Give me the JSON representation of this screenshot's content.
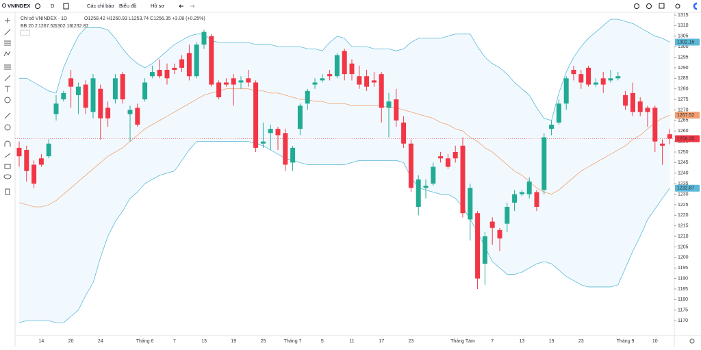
{
  "toolbar": {
    "symbol": "VNINDEX",
    "interval": "D",
    "indicators": "Các chỉ báo",
    "chart_type": "Biểu đồ",
    "profile": "Hồ sơ"
  },
  "chart_data": {
    "type": "candlestick",
    "title": "Chỉ số VNINDEX · 1D",
    "ohlc_text": "O1258.42 H1260.93 L1253.74 C1256.35 +3.08 (+0.25%)",
    "indicator_label": "BB 20 2",
    "indicator_values": [
      "1267.52",
      "1302.16",
      "1232.87"
    ],
    "categories": [
      null,
      null,
      null,
      "14",
      null,
      null,
      null,
      "20",
      null,
      null,
      null,
      "24",
      null,
      null,
      null,
      null,
      null,
      "Tháng 6",
      null,
      null,
      null,
      "7",
      null,
      null,
      null,
      "13",
      null,
      null,
      null,
      "19",
      null,
      null,
      null,
      "25",
      null,
      null,
      null,
      "Tháng 7",
      null,
      null,
      null,
      "5",
      null,
      null,
      null,
      "11",
      null,
      null,
      null,
      "17",
      null,
      null,
      null,
      "23",
      null,
      null,
      null,
      null,
      null,
      null,
      "Tháng Tám",
      null,
      null,
      null,
      "7",
      null,
      null,
      null,
      "13",
      null,
      null,
      null,
      "19",
      null,
      null,
      null,
      "23",
      null,
      null,
      null,
      null,
      null,
      "Tháng 9",
      null,
      null,
      null,
      "10",
      null,
      null
    ],
    "open": [
      1252,
      1251,
      1244,
      1247,
      1248,
      1268,
      1275,
      1285,
      1277,
      1282,
      1269,
      1280,
      1271,
      1275,
      1287,
      1268,
      1271,
      1275,
      1286,
      1289,
      1289,
      1290,
      1294,
      1297,
      1286,
      1301,
      1305,
      1283,
      1283,
      1285,
      1283,
      1285,
      1283,
      1254,
      1259,
      1261,
      1259,
      1245,
      1261,
      1273,
      1282,
      1284,
      1287,
      1286,
      1298,
      1292,
      1286,
      1286,
      1284,
      1287,
      1271,
      1275,
      1264,
      1254,
      1224,
      1233,
      1235,
      1248,
      1247,
      1250,
      1253,
      1218,
      1221,
      1197,
      1217,
      1213,
      1216,
      1226,
      1230,
      1230,
      1231,
      1232,
      1261,
      1264,
      1273,
      1289,
      1287,
      1290,
      1282,
      1285,
      1284,
      1285,
      1277,
      1278,
      1274,
      1271,
      1271,
      1254,
      1258.42
    ],
    "high": [
      1255,
      1253,
      1246,
      1249,
      1256,
      1277,
      1279,
      1289,
      1283,
      1284,
      1287,
      1282,
      1274,
      1287,
      1288,
      1272,
      1273,
      1285,
      1291,
      1294,
      1292,
      1292,
      1296,
      1301,
      1302,
      1308,
      1306,
      1284,
      1285,
      1287,
      1286,
      1289,
      1284,
      1264,
      1263,
      1262,
      1261,
      1253,
      1273,
      1280,
      1285,
      1287,
      1289,
      1297,
      1299,
      1294,
      1291,
      1289,
      1288,
      1288,
      1278,
      1280,
      1267,
      1256,
      1239,
      1237,
      1245,
      1250,
      1249,
      1253,
      1257,
      1235,
      1222,
      1212,
      1219,
      1214,
      1226,
      1232,
      1232,
      1238,
      1232,
      1259,
      1265,
      1275,
      1286,
      1291,
      1289,
      1291,
      1285,
      1288,
      1289,
      1288,
      1279,
      1283,
      1276,
      1272,
      1272,
      1256,
      1260.93
    ],
    "low": [
      1243,
      1236,
      1233,
      1243,
      1247,
      1265,
      1274,
      1271,
      1268,
      1268,
      1266,
      1256,
      1262,
      1273,
      1273,
      1255,
      1262,
      1274,
      1285,
      1285,
      1282,
      1287,
      1288,
      1284,
      1285,
      1299,
      1281,
      1275,
      1281,
      1272,
      1280,
      1281,
      1250,
      1252,
      1251,
      1251,
      1241,
      1241,
      1258,
      1270,
      1280,
      1283,
      1284,
      1285,
      1284,
      1284,
      1280,
      1279,
      1281,
      1264,
      1257,
      1262,
      1252,
      1231,
      1220,
      1228,
      1234,
      1245,
      1242,
      1245,
      1219,
      1208,
      1185,
      1187,
      1206,
      1203,
      1212,
      1222,
      1229,
      1228,
      1222,
      1230,
      1258,
      1263,
      1270,
      1284,
      1280,
      1281,
      1281,
      1278,
      1283,
      1284,
      1270,
      1267,
      1267,
      1262,
      1250,
      1244,
      1253.74
    ],
    "close": [
      1248,
      1241,
      1235,
      1244,
      1254,
      1273,
      1278,
      1281,
      1281,
      1271,
      1285,
      1266,
      1266,
      1285,
      1275,
      1270,
      1263,
      1283,
      1288,
      1286,
      1285,
      1289,
      1290,
      1286,
      1301,
      1307,
      1282,
      1276,
      1282,
      1282,
      1284,
      1283,
      1252,
      1255,
      1261,
      1258,
      1244,
      1252,
      1272,
      1279,
      1283,
      1285,
      1286,
      1296,
      1287,
      1287,
      1282,
      1281,
      1283,
      1271,
      1274,
      1265,
      1254,
      1233,
      1237,
      1234,
      1243,
      1247,
      1243,
      1247,
      1221,
      1233,
      1190,
      1210,
      1214,
      1209,
      1224,
      1230,
      1231,
      1236,
      1224,
      1257,
      1263,
      1273,
      1285,
      1287,
      1283,
      1282,
      1283,
      1282,
      1285,
      1286,
      1272,
      1269,
      1269,
      1269,
      1255,
      1253,
      1256.35
    ],
    "up_color": "#22ab94",
    "down_color": "#f23645",
    "band_fill": "rgba(33,150,243,0.06)",
    "overlays": [
      {
        "color": "#f0a070",
        "values": [
          1226,
          1225,
          1224,
          1224,
          1225,
          1227,
          1230,
          1233,
          1236,
          1239,
          1242,
          1245,
          1248,
          1250,
          1252,
          1255,
          1258,
          1261,
          1263,
          1265,
          1267,
          1269,
          1271,
          1273,
          1275,
          1277,
          1278,
          1279,
          1280,
          1280,
          1280,
          1280,
          1279,
          1279,
          1278,
          1278,
          1277,
          1276,
          1275,
          1275,
          1274,
          1274,
          1273,
          1273,
          1273,
          1272,
          1272,
          1272,
          1272,
          1272,
          1271,
          1271,
          1270,
          1269,
          1268,
          1267,
          1266,
          1264,
          1263,
          1261,
          1260,
          1257,
          1255,
          1252,
          1250,
          1247,
          1244,
          1241,
          1239,
          1236,
          1233,
          1231,
          1230,
          1232,
          1235,
          1238,
          1241,
          1243,
          1245,
          1247,
          1249,
          1251,
          1253,
          1256,
          1258,
          1261,
          1264,
          1266,
          1267.52
        ]
      },
      {
        "color": "#5bb8d8",
        "values": [
          1285,
          1285,
          1283,
          1281,
          1279,
          1278,
          1290,
          1298,
          1305,
          1309,
          1309,
          1309,
          1308,
          1304,
          1299,
          1295,
          1292,
          1290,
          1292,
          1295,
          1298,
          1301,
          1303,
          1305,
          1306,
          1306,
          1303,
          1302,
          1302,
          1302,
          1302,
          1302,
          1301,
          1301,
          1301,
          1300,
          1300,
          1300,
          1300,
          1299,
          1299,
          1298,
          1302,
          1305,
          1304,
          1300,
          1300,
          1300,
          1299,
          1299,
          1299,
          1298,
          1299,
          1302,
          1304,
          1304,
          1304,
          1304,
          1305,
          1306,
          1306,
          1306,
          1300,
          1295,
          1292,
          1290,
          1287,
          1283,
          1280,
          1277,
          1271,
          1266,
          1265,
          1278,
          1288,
          1295,
          1300,
          1304,
          1307,
          1310,
          1313,
          1313,
          1312,
          1311,
          1309,
          1307,
          1305,
          1304,
          1302.16
        ]
      },
      {
        "color": "#5bb8d8",
        "values": [
          1169,
          1170,
          1170,
          1170,
          1170,
          1169,
          1169,
          1172,
          1175,
          1182,
          1188,
          1200,
          1210,
          1217,
          1222,
          1228,
          1231,
          1235,
          1237,
          1239,
          1240,
          1241,
          1246,
          1251,
          1255,
          1255,
          1255,
          1255,
          1255,
          1255,
          1255,
          1255,
          1254,
          1253,
          1251,
          1249,
          1247,
          1246,
          1245,
          1244,
          1244,
          1244,
          1244,
          1244,
          1244,
          1245,
          1246,
          1246,
          1246,
          1246,
          1246,
          1246,
          1245,
          1238,
          1233,
          1232,
          1231,
          1230,
          1230,
          1228,
          1224,
          1218,
          1212,
          1205,
          1198,
          1195,
          1192,
          1192,
          1193,
          1195,
          1197,
          1198,
          1197,
          1194,
          1191,
          1189,
          1187,
          1186,
          1186,
          1186,
          1186,
          1187,
          1195,
          1203,
          1210,
          1218,
          1223,
          1228,
          1232.87
        ]
      }
    ],
    "ylim": [
      1162.9,
      1316.3
    ],
    "yticks": [
      1170,
      1175,
      1180,
      1185,
      1190,
      1195,
      1200,
      1205,
      1210,
      1215,
      1220,
      1225,
      1230,
      1235,
      1240,
      1245,
      1250,
      1255,
      1260,
      1265,
      1270,
      1275,
      1280,
      1285,
      1290,
      1295,
      1300,
      1305,
      1310,
      1315
    ]
  }
}
